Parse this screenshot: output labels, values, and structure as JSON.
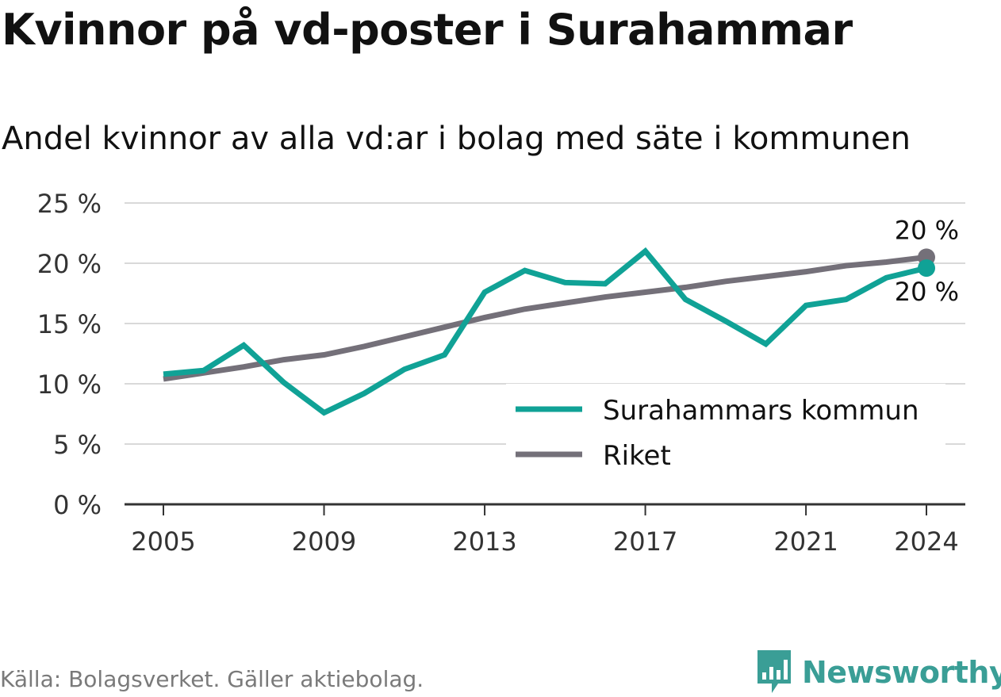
{
  "title": "Kvinnor på vd-poster i Surahammar",
  "subtitle": "Andel kvinnor av alla vd:ar i bolag med säte i kommunen",
  "source": "Källa: Bolagsverket. Gäller aktiebolag.",
  "brand": {
    "name": "Newsworthy",
    "icon": "newsworthy-logo-icon",
    "color": "#3a9e96"
  },
  "colors": {
    "surahammar": "#10a296",
    "riket": "#747079",
    "grid": "#d9d9d9",
    "axis": "#333333",
    "text": "#333333"
  },
  "chart_data": {
    "type": "line",
    "x": [
      2005,
      2006,
      2007,
      2008,
      2009,
      2010,
      2011,
      2012,
      2013,
      2014,
      2015,
      2016,
      2017,
      2018,
      2019,
      2020,
      2021,
      2022,
      2023,
      2024
    ],
    "xticks": [
      2005,
      2009,
      2013,
      2017,
      2021,
      2024
    ],
    "xtick_labels": [
      "2005",
      "2009",
      "2013",
      "2017",
      "2021",
      "2024"
    ],
    "yticks": [
      0,
      5,
      10,
      15,
      20,
      25
    ],
    "ytick_labels": [
      "0 %",
      "5 %",
      "10 %",
      "15 %",
      "20 %",
      "25 %"
    ],
    "ylim": [
      0,
      25
    ],
    "xlabel": "",
    "ylabel": "",
    "grid": true,
    "legend_position": "bottom-right",
    "series": [
      {
        "name": "Surahammars kommun",
        "key": "surahammar",
        "values": [
          10.8,
          11.1,
          13.2,
          10.1,
          7.6,
          9.2,
          11.2,
          12.4,
          17.6,
          19.4,
          18.4,
          18.3,
          21.0,
          17.0,
          15.2,
          13.3,
          16.5,
          17.0,
          18.8,
          19.6
        ],
        "end_label": "20 %"
      },
      {
        "name": "Riket",
        "key": "riket",
        "values": [
          10.4,
          10.9,
          11.4,
          12.0,
          12.4,
          13.1,
          13.9,
          14.7,
          15.5,
          16.2,
          16.7,
          17.2,
          17.6,
          18.0,
          18.5,
          18.9,
          19.3,
          19.8,
          20.1,
          20.5
        ],
        "end_label": "20 %"
      }
    ]
  }
}
